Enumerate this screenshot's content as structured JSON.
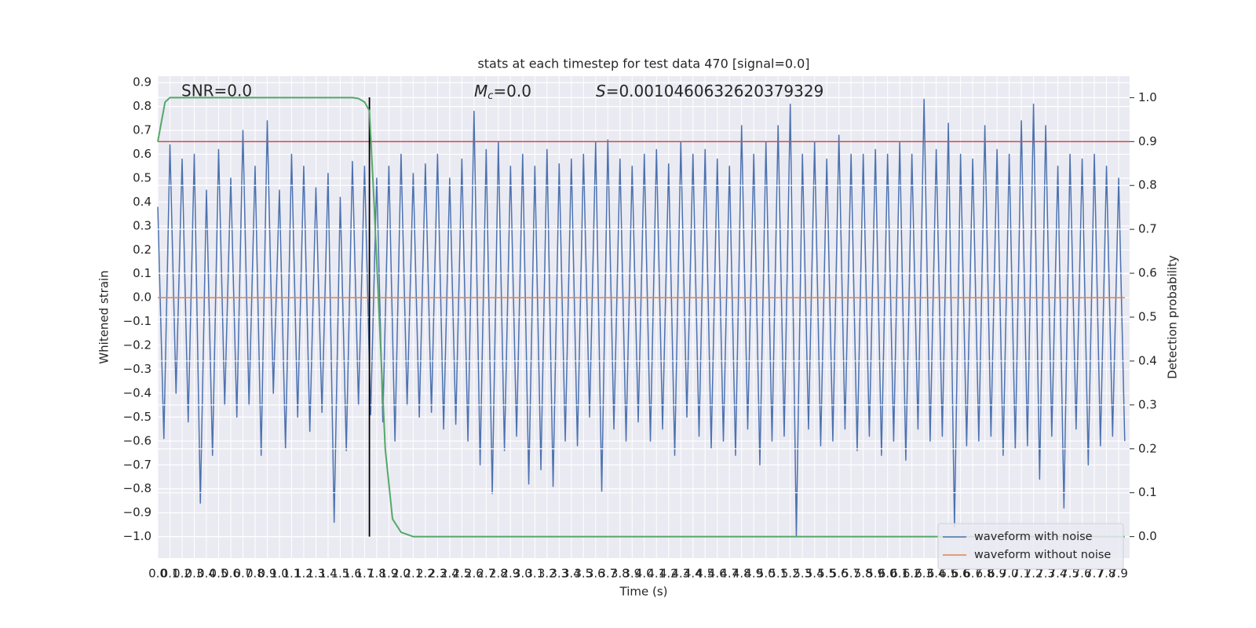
{
  "chart_data": {
    "type": "line",
    "title": "stats at each timestep for test data 470 [signal=0.0]",
    "xlabel": "Time (s)",
    "ylabel": "Whitened strain",
    "y2label": "Detection probability",
    "annotations": {
      "snr": "SNR=0.0",
      "mc": {
        "symbol": "M",
        "subscript": "c",
        "text": "=0.0"
      },
      "s": {
        "symbol": "S",
        "text": "=0.0010460632620379329"
      }
    },
    "xlim": [
      0,
      7.99
    ],
    "ylim": [
      -1.09,
      0.927
    ],
    "y2lim": [
      -0.049,
      1.049
    ],
    "xticks": [
      {
        "value": 0,
        "label": "0.0"
      },
      0.1,
      0.2,
      0.3,
      0.4,
      0.5,
      0.6,
      0.7,
      0.8,
      0.9,
      {
        "value": 1,
        "label": "1.0"
      },
      1.1,
      1.2,
      1.3,
      1.4,
      1.5,
      1.6,
      1.7,
      1.8,
      1.9,
      {
        "value": 2,
        "label": "2.0"
      },
      2.1,
      2.2,
      2.3,
      2.4,
      2.5,
      2.6,
      2.7,
      2.8,
      2.9,
      {
        "value": 3,
        "label": "3.0"
      },
      3.1,
      3.2,
      3.3,
      3.4,
      3.5,
      3.6,
      3.7,
      3.8,
      3.9,
      {
        "value": 4,
        "label": "4.0"
      },
      4.1,
      4.2,
      4.3,
      4.4,
      4.5,
      4.6,
      4.7,
      4.8,
      4.9,
      {
        "value": 5,
        "label": "5.0"
      },
      5.1,
      5.2,
      5.3,
      5.4,
      5.5,
      5.6,
      5.7,
      5.8,
      5.9,
      {
        "value": 6,
        "label": "6.0"
      },
      6.1,
      6.2,
      6.3,
      6.4,
      6.5,
      6.6,
      6.7,
      6.8,
      6.9,
      {
        "value": 7,
        "label": "7.0"
      },
      7.1,
      7.2,
      7.3,
      7.4,
      7.5,
      7.6,
      7.7,
      7.8,
      7.9
    ],
    "yticks": [
      0.9,
      0.8,
      0.7,
      0.6,
      0.5,
      0.4,
      0.3,
      0.2,
      0.1,
      {
        "value": 0,
        "label": "0.0"
      },
      {
        "value": -0.1,
        "label": "−0.1"
      },
      {
        "value": -0.2,
        "label": "−0.2"
      },
      {
        "value": -0.3,
        "label": "−0.3"
      },
      {
        "value": -0.4,
        "label": "−0.4"
      },
      {
        "value": -0.5,
        "label": "−0.5"
      },
      {
        "value": -0.6,
        "label": "−0.6"
      },
      {
        "value": -0.7,
        "label": "−0.7"
      },
      {
        "value": -0.8,
        "label": "−0.8"
      },
      {
        "value": -0.9,
        "label": "−0.9"
      },
      {
        "value": -1,
        "label": "−1.0"
      }
    ],
    "y2ticks": [
      {
        "value": 1,
        "label": "1.0"
      },
      0.9,
      0.8,
      0.7,
      0.6,
      0.5,
      0.4,
      0.3,
      0.2,
      0.1,
      {
        "value": 0,
        "label": "0.0"
      }
    ],
    "grid": true,
    "legend": "lower right",
    "series": [
      {
        "name": "waveform with noise",
        "color": "#4c72b0",
        "x": [
          0,
          0.05,
          0.1,
          0.15,
          0.2,
          0.25,
          0.3,
          0.35,
          0.4,
          0.45,
          0.5,
          0.55,
          0.6,
          0.65,
          0.7,
          0.75,
          0.8,
          0.85,
          0.9,
          0.95,
          1,
          1.05,
          1.1,
          1.15,
          1.2,
          1.25,
          1.3,
          1.35,
          1.4,
          1.45,
          1.5,
          1.55,
          1.6,
          1.65,
          1.7,
          1.75,
          1.8,
          1.85,
          1.9,
          1.95,
          2,
          2.05,
          2.1,
          2.15,
          2.2,
          2.25,
          2.3,
          2.35,
          2.4,
          2.45,
          2.5,
          2.55,
          2.6,
          2.65,
          2.7,
          2.75,
          2.8,
          2.85,
          2.9,
          2.95,
          3,
          3.05,
          3.1,
          3.15,
          3.2,
          3.25,
          3.3,
          3.35,
          3.4,
          3.45,
          3.5,
          3.55,
          3.6,
          3.65,
          3.7,
          3.75,
          3.8,
          3.85,
          3.9,
          3.95,
          4,
          4.05,
          4.1,
          4.15,
          4.2,
          4.25,
          4.3,
          4.35,
          4.4,
          4.45,
          4.5,
          4.55,
          4.6,
          4.65,
          4.7,
          4.75,
          4.8,
          4.85,
          4.9,
          4.95,
          5,
          5.05,
          5.1,
          5.15,
          5.2,
          5.25,
          5.3,
          5.35,
          5.4,
          5.45,
          5.5,
          5.55,
          5.6,
          5.65,
          5.7,
          5.75,
          5.8,
          5.85,
          5.9,
          5.95,
          6,
          6.05,
          6.1,
          6.15,
          6.2,
          6.25,
          6.3,
          6.35,
          6.4,
          6.45,
          6.5,
          6.55,
          6.6,
          6.65,
          6.7,
          6.75,
          6.8,
          6.85,
          6.9,
          6.95,
          7,
          7.05,
          7.1,
          7.15,
          7.2,
          7.25,
          7.3,
          7.35,
          7.4,
          7.45,
          7.5,
          7.55,
          7.6,
          7.65,
          7.7,
          7.75,
          7.8,
          7.85,
          7.9,
          7.95
        ],
        "values": [
          0.38,
          -0.59,
          0.64,
          -0.4,
          0.58,
          -0.52,
          0.6,
          -0.86,
          0.45,
          -0.66,
          0.62,
          -0.45,
          0.5,
          -0.5,
          0.7,
          -0.45,
          0.55,
          -0.66,
          0.74,
          -0.4,
          0.45,
          -0.63,
          0.6,
          -0.5,
          0.55,
          -0.56,
          0.46,
          -0.48,
          0.52,
          -0.94,
          0.42,
          -0.64,
          0.57,
          -0.45,
          0.55,
          -0.49,
          0.5,
          -0.52,
          0.55,
          -0.6,
          0.6,
          -0.45,
          0.52,
          -0.5,
          0.56,
          -0.48,
          0.6,
          -0.55,
          0.5,
          -0.53,
          0.58,
          -0.6,
          0.78,
          -0.7,
          0.62,
          -0.82,
          0.65,
          -0.64,
          0.55,
          -0.58,
          0.6,
          -0.78,
          0.55,
          -0.72,
          0.62,
          -0.79,
          0.56,
          -0.6,
          0.58,
          -0.62,
          0.6,
          -0.5,
          0.65,
          -0.81,
          0.66,
          -0.55,
          0.58,
          -0.6,
          0.55,
          -0.52,
          0.6,
          -0.6,
          0.62,
          -0.55,
          0.56,
          -0.66,
          0.65,
          -0.5,
          0.6,
          -0.58,
          0.62,
          -0.63,
          0.58,
          -0.6,
          0.55,
          -0.66,
          0.72,
          -0.55,
          0.6,
          -0.7,
          0.65,
          -0.6,
          0.72,
          -0.58,
          0.81,
          -1.0,
          0.6,
          -0.55,
          0.65,
          -0.62,
          0.58,
          -0.6,
          0.68,
          -0.55,
          0.6,
          -0.64,
          0.6,
          -0.58,
          0.62,
          -0.66,
          0.6,
          -0.6,
          0.65,
          -0.68,
          0.6,
          -0.55,
          0.83,
          -0.6,
          0.62,
          -0.58,
          0.73,
          -0.96,
          0.6,
          -0.62,
          0.58,
          -0.6,
          0.72,
          -0.58,
          0.62,
          -0.66,
          0.6,
          -0.63,
          0.74,
          -0.62,
          0.81,
          -0.76,
          0.72,
          -0.58,
          0.55,
          -0.88,
          0.6,
          -0.55,
          0.58,
          -0.7,
          0.6,
          -0.62,
          0.55,
          -0.58,
          0.5,
          -0.6
        ]
      },
      {
        "name": "waveform without noise",
        "color": "#dd8452",
        "x": [
          0,
          7.95
        ],
        "values": [
          0,
          0
        ]
      },
      {
        "color": "#55a868",
        "axis": "y2",
        "x": [
          0,
          0.06,
          0.1,
          1.6,
          1.65,
          1.7,
          1.74,
          1.78,
          1.87,
          1.93,
          2.0,
          2.1,
          7.95
        ],
        "values": [
          0.9,
          0.99,
          1.0,
          1.0,
          0.998,
          0.99,
          0.97,
          0.75,
          0.2,
          0.04,
          0.01,
          0.0,
          0.0
        ]
      }
    ],
    "hlines": [
      {
        "value": 0.9,
        "axis": "y2",
        "color": "#c44e52"
      }
    ],
    "vlines": [
      {
        "x": 1.74,
        "color": "#000000"
      }
    ]
  }
}
